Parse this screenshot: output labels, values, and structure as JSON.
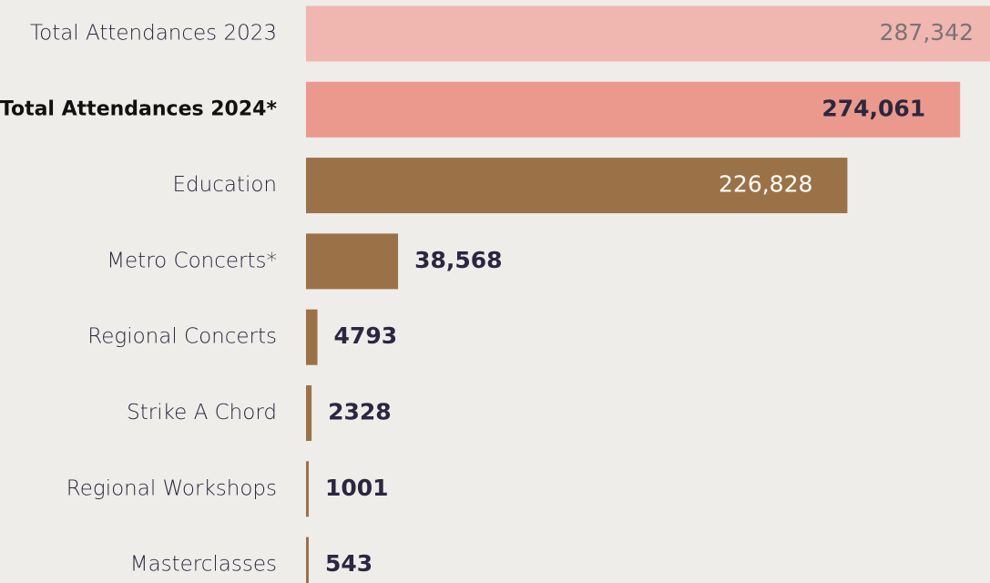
{
  "chart_data": {
    "type": "bar",
    "orientation": "horizontal",
    "categories": [
      "Total Attendances 2023",
      "Total Attendances 2024*",
      "Education",
      "Metro Concerts*",
      "Regional Concerts",
      "Strike A Chord",
      "Regional Workshops",
      "Masterclasses"
    ],
    "values": [
      287342,
      274061,
      226828,
      38568,
      4793,
      2328,
      1001,
      543
    ],
    "value_labels": [
      "287,342",
      "274,061",
      "226,828",
      "38,568",
      "4793",
      "2328",
      "1001",
      "543"
    ],
    "colors": [
      "#f0b6b0",
      "#eb988d",
      "#9b7247",
      "#9b7247",
      "#9b7247",
      "#9b7247",
      "#9b7247",
      "#9b7247"
    ],
    "value_label_colors": [
      "#7a7474",
      "#2b2740",
      "#ffffff",
      "#2b2740",
      "#2b2740",
      "#2b2740",
      "#2b2740",
      "#2b2740"
    ]
  }
}
